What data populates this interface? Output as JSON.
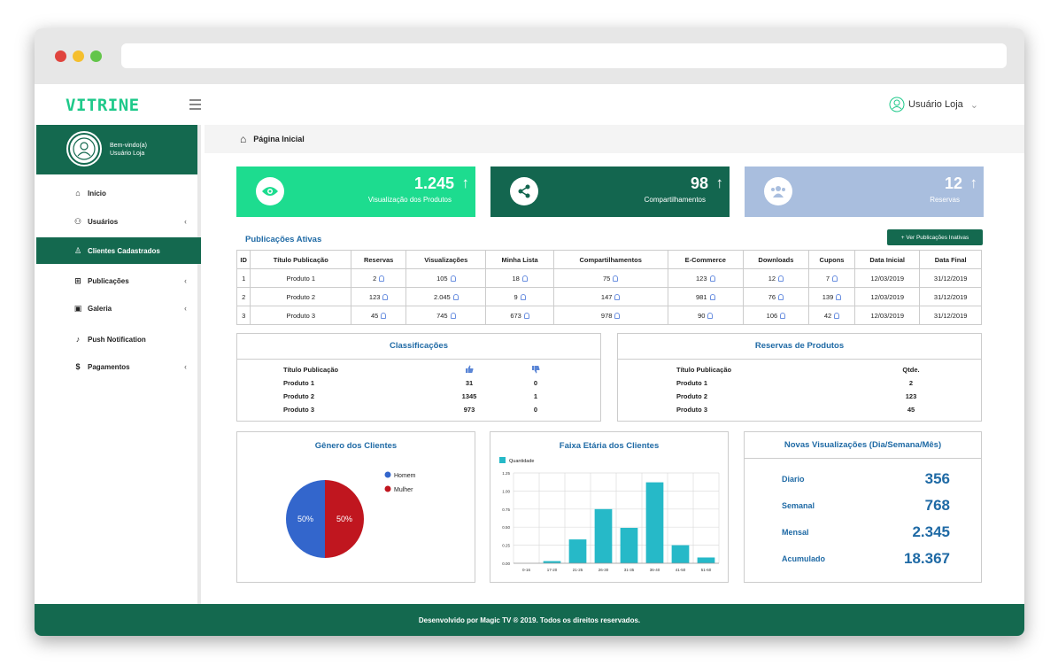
{
  "app": {
    "logo": "VITRINE",
    "user": "Usuário Loja"
  },
  "welcome": {
    "line1": "Bem-vindo(a)",
    "line2": "Usuário Loja"
  },
  "sidebar": {
    "items": [
      {
        "label": "Início",
        "icon": "home-icon"
      },
      {
        "label": "Usuários",
        "icon": "users-icon",
        "chevron": "‹"
      },
      {
        "label": "Clientes Cadastrados",
        "icon": "client-icon"
      },
      {
        "label": "Publicações",
        "icon": "plus-box-icon",
        "chevron": "‹"
      },
      {
        "label": "Galeria",
        "icon": "image-icon",
        "chevron": "‹"
      },
      {
        "label": "Push Notification",
        "icon": "bell-icon"
      },
      {
        "label": "Pagamentos",
        "icon": "dollar-icon",
        "chevron": "‹"
      }
    ]
  },
  "breadcrumb": "Página Inicial",
  "cards": [
    {
      "value": "1.245",
      "label": "Visualização dos Produtos",
      "color": "#1ddc8f"
    },
    {
      "value": "98",
      "label": "Compartilhamentos",
      "color": "#13664f"
    },
    {
      "value": "12",
      "label": "Reservas",
      "color": "#a9bede"
    }
  ],
  "pub": {
    "title": "Publicações Ativas",
    "button": "+ Ver Publicações Inativas",
    "headers": [
      "ID",
      "Título Publicação",
      "Reservas",
      "Visualizações",
      "Minha Lista",
      "Compartilhamentos",
      "E-Commerce",
      "Downloads",
      "Cupons",
      "Data Inicial",
      "Data Final"
    ],
    "rows": [
      [
        "1",
        "Produto 1",
        "2",
        "105",
        "18",
        "75",
        "123",
        "12",
        "7",
        "12/03/2019",
        "31/12/2019"
      ],
      [
        "2",
        "Produto 2",
        "123",
        "2.045",
        "9",
        "147",
        "981",
        "76",
        "139",
        "12/03/2019",
        "31/12/2019"
      ],
      [
        "3",
        "Produto 3",
        "45",
        "745",
        "673",
        "978",
        "90",
        "106",
        "42",
        "12/03/2019",
        "31/12/2019"
      ]
    ]
  },
  "classif": {
    "title": "Classificações",
    "header": "Título Publicação",
    "rows": [
      [
        "Produto 1",
        "31",
        "0"
      ],
      [
        "Produto 2",
        "1345",
        "1"
      ],
      [
        "Produto 3",
        "973",
        "0"
      ]
    ]
  },
  "reservas": {
    "title": "Reservas de Produtos",
    "headers": [
      "Título Publicação",
      "Qtde."
    ],
    "rows": [
      [
        "Produto 1",
        "2"
      ],
      [
        "Produto 2",
        "123"
      ],
      [
        "Produto 3",
        "45"
      ]
    ]
  },
  "genero": {
    "title": "Gênero dos Clientes",
    "chart_data": {
      "type": "pie",
      "slices": [
        {
          "name": "Homem",
          "value": 50,
          "label": "50%",
          "color": "#3366cc"
        },
        {
          "name": "Mulher",
          "value": 50,
          "label": "50%",
          "color": "#c0161f"
        }
      ]
    }
  },
  "faixa": {
    "title": "Faixa Etária dos Clientes",
    "chart_data": {
      "type": "bar",
      "legend": "Quantidade",
      "color": "#26b9c8",
      "categories": [
        "0-16",
        "17-20",
        "21-25",
        "26-30",
        "31-35",
        "36-40",
        "41-50",
        "51-60"
      ],
      "values": [
        0,
        0.03,
        0.33,
        0.75,
        0.49,
        1.12,
        0.25,
        0.08
      ],
      "yticks": [
        "0.00",
        "0.25",
        "0.50",
        "0.75",
        "1.00",
        "1.25"
      ],
      "ylim": [
        0,
        1.25
      ]
    }
  },
  "novas": {
    "title": "Novas Visualizações (Dia/Semana/Mês)",
    "rows": [
      {
        "label": "Diario",
        "value": "356"
      },
      {
        "label": "Semanal",
        "value": "768"
      },
      {
        "label": "Mensal",
        "value": "2.345"
      },
      {
        "label": "Acumulado",
        "value": "18.367"
      }
    ]
  },
  "footer": "Desenvolvido por Magic TV ® 2019. Todos os direitos reservados."
}
